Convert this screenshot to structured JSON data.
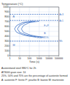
{
  "chart_data": {
    "type": "line",
    "y_label": "Temperature (°C)",
    "x_label": "Time (s)",
    "log": "x",
    "grid": true,
    "xlim": [
      1,
      100000
    ],
    "xticks": [
      1,
      10,
      100,
      1000,
      10000,
      100000
    ],
    "ylim": [
      0,
      1000
    ],
    "yticks": [
      0,
      100,
      200,
      300,
      400,
      500,
      600,
      700,
      800,
      900,
      1000
    ],
    "series": [
      {
        "name": "25%",
        "color": "#3a6fc4",
        "line_style": "solid",
        "x": [
          200,
          20,
          5,
          3,
          5,
          20,
          100,
          500
        ],
        "values": [
          710,
          680,
          620,
          550,
          480,
          430,
          400,
          380
        ]
      },
      {
        "name": "50%",
        "color": "#3a6fc4",
        "line_style": "solid",
        "x": [
          400,
          40,
          10,
          6,
          10,
          40,
          200,
          1000
        ],
        "values": [
          710,
          680,
          620,
          550,
          480,
          430,
          400,
          380
        ]
      },
      {
        "name": "75%",
        "color": "#3a6fc4",
        "line_style": "solid",
        "x": [
          1000,
          100,
          25,
          15,
          25,
          100,
          500,
          2500
        ],
        "values": [
          710,
          680,
          620,
          550,
          480,
          430,
          400,
          380
        ]
      },
      {
        "name": "Ac3",
        "color": "#3a6fc4",
        "line_style": "dashed",
        "x": [
          1,
          100000
        ],
        "values": [
          850,
          850
        ]
      },
      {
        "name": "Ac1",
        "color": "#3a6fc4",
        "line_style": "dashed",
        "x": [
          1,
          100000
        ],
        "values": [
          725,
          725
        ]
      },
      {
        "name": "Ms",
        "color": "#3a6fc4",
        "line_style": "dashed",
        "x": [
          1,
          100000
        ],
        "values": [
          300,
          300
        ]
      }
    ],
    "annotations": [
      {
        "text": "A",
        "x": 2,
        "y": 780
      },
      {
        "text": "F+P",
        "x": 3000,
        "y": 600
      },
      {
        "text": "B",
        "x": 3000,
        "y": 440
      },
      {
        "text": "M",
        "x": 2,
        "y": 200
      }
    ],
    "notes": [
      "Austenitized steel 880°C for 2h",
      "AT3000 grain size: 10",
      "25%, 50% and 75% are the percentage of austenite formed",
      "A: austenite  F: ferrite  P: pearlite  B: bainite  M: martensite"
    ]
  }
}
